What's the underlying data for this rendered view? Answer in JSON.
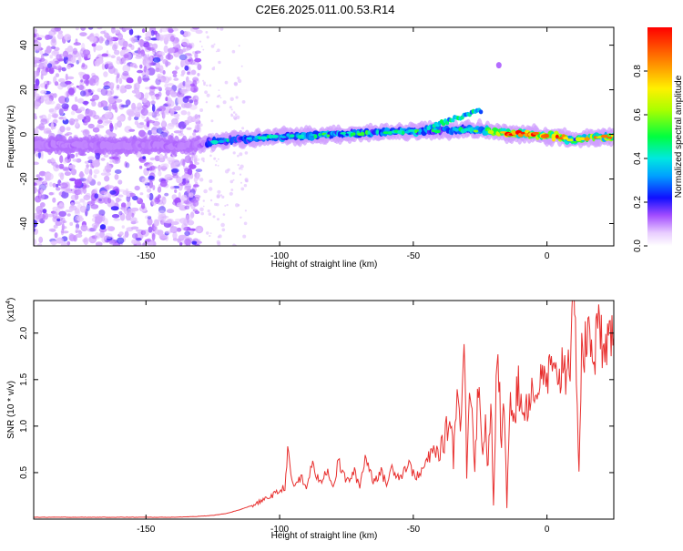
{
  "title": "C2E6.2025.011.00.53.R14",
  "chart_data": [
    {
      "type": "heatmap",
      "title": "C2E6.2025.011.00.53.R14",
      "xlabel": "Height of straight line (km)",
      "ylabel": "Frequency (Hz)",
      "xlim": [
        -192,
        25
      ],
      "ylim": [
        -50,
        48
      ],
      "x_ticks": [
        -150,
        -100,
        -50,
        0
      ],
      "y_ticks": [
        -40,
        -20,
        0,
        20,
        40
      ],
      "tick_labels_x": [
        "-150",
        "-100",
        "-50",
        "0"
      ],
      "tick_labels_y": [
        "-40",
        "-20",
        "0",
        "20",
        "40"
      ],
      "colorbar": {
        "label": "Normalized spectral amplitude",
        "range": [
          0,
          1
        ],
        "ticks": [
          "0.0",
          "0.2",
          "0.4",
          "0.6",
          "0.8"
        ],
        "tick_values": [
          0.0,
          0.2,
          0.4,
          0.6,
          0.8
        ]
      },
      "noise_region_x": [
        -192,
        -130
      ],
      "ridge": {
        "description_points": [
          {
            "x": -192,
            "y": -4.5,
            "amp": 0.15
          },
          {
            "x": -160,
            "y": -5,
            "amp": 0.15
          },
          {
            "x": -130,
            "y": -5,
            "amp": 0.15
          },
          {
            "x": -125,
            "y": -3,
            "amp": 0.35
          },
          {
            "x": -110,
            "y": -2,
            "amp": 0.35
          },
          {
            "x": -100,
            "y": -1,
            "amp": 0.4
          },
          {
            "x": -80,
            "y": 0,
            "amp": 0.45
          },
          {
            "x": -60,
            "y": 1,
            "amp": 0.4
          },
          {
            "x": -50,
            "y": 1.5,
            "amp": 0.45
          },
          {
            "x": -35,
            "y": 2,
            "amp": 0.35
          },
          {
            "x": -25,
            "y": 2,
            "amp": 0.5
          },
          {
            "x": -15,
            "y": 0.5,
            "amp": 0.9
          },
          {
            "x": -5,
            "y": 0,
            "amp": 0.9
          },
          {
            "x": 5,
            "y": -1,
            "amp": 0.85
          },
          {
            "x": 10,
            "y": -3,
            "amp": 0.5
          },
          {
            "x": 15,
            "y": -1.5,
            "amp": 0.8
          },
          {
            "x": 25,
            "y": -1,
            "amp": 0.8
          }
        ]
      }
    },
    {
      "type": "line",
      "xlabel": "Height of straight line (km)",
      "ylabel": "SNR (10 * v/v)",
      "y_multiplier_label": "(x10",
      "y_multiplier_exp": "4",
      "xlim": [
        -192,
        25
      ],
      "ylim": [
        0,
        2.35
      ],
      "x_ticks": [
        -150,
        -100,
        -50,
        0
      ],
      "y_ticks": [
        0.5,
        1.0,
        1.5,
        2.0
      ],
      "tick_labels_x": [
        "-150",
        "-100",
        "-50",
        "0"
      ],
      "tick_labels_y": [
        "0.5",
        "1.0",
        "1.5",
        "2.0"
      ],
      "line_color": "#e8302f",
      "series": [
        {
          "x": [
            -192,
            -180,
            -170,
            -160,
            -150,
            -140,
            -130,
            -125,
            -120,
            -115,
            -110,
            -105,
            -100,
            -98,
            -97,
            -95,
            -92,
            -90,
            -88,
            -85,
            -82,
            -80,
            -78,
            -75,
            -72,
            -70,
            -68,
            -65,
            -62,
            -60,
            -58,
            -55,
            -52,
            -50,
            -48,
            -45,
            -42,
            -40,
            -38,
            -36,
            -35,
            -34,
            -32,
            -31,
            -30,
            -29,
            -28,
            -27,
            -26,
            -25,
            -24,
            -23,
            -22,
            -21,
            -20,
            -19,
            -18,
            -17,
            -16,
            -15,
            -14,
            -13,
            -12,
            -11,
            -10,
            -9,
            -8,
            -7,
            -6,
            -5,
            -4,
            -3,
            -2,
            -1,
            0,
            1,
            2,
            3,
            4,
            5,
            6,
            7,
            8,
            9,
            10,
            11,
            12,
            13,
            14,
            15,
            16,
            17,
            18,
            19,
            20,
            21,
            22,
            23,
            24,
            25
          ],
          "y": [
            0.02,
            0.02,
            0.02,
            0.02,
            0.02,
            0.02,
            0.03,
            0.04,
            0.06,
            0.1,
            0.15,
            0.22,
            0.3,
            0.35,
            0.72,
            0.35,
            0.45,
            0.32,
            0.6,
            0.38,
            0.55,
            0.33,
            0.62,
            0.4,
            0.5,
            0.35,
            0.68,
            0.42,
            0.5,
            0.38,
            0.55,
            0.45,
            0.6,
            0.5,
            0.45,
            0.62,
            0.75,
            0.7,
            0.9,
            1.1,
            0.65,
            1.3,
            1.1,
            1.9,
            0.5,
            1.6,
            1.15,
            0.6,
            1.25,
            1.3,
            0.7,
            1.05,
            0.5,
            1.35,
            0.12,
            1.45,
            1.55,
            0.8,
            1.2,
            0.15,
            1.25,
            1.35,
            1.1,
            1.45,
            1.3,
            1.15,
            1.28,
            1.2,
            1.45,
            1.3,
            1.35,
            1.5,
            1.4,
            1.55,
            1.45,
            1.6,
            1.55,
            1.45,
            1.65,
            1.5,
            1.75,
            1.6,
            1.8,
            1.7,
            2.35,
            1.7,
            0.5,
            1.85,
            1.75,
            2.0,
            1.85,
            1.95,
            1.8,
            2.05,
            1.95,
            1.9,
            2.1,
            1.85,
            2.0,
            1.95
          ]
        }
      ]
    }
  ]
}
